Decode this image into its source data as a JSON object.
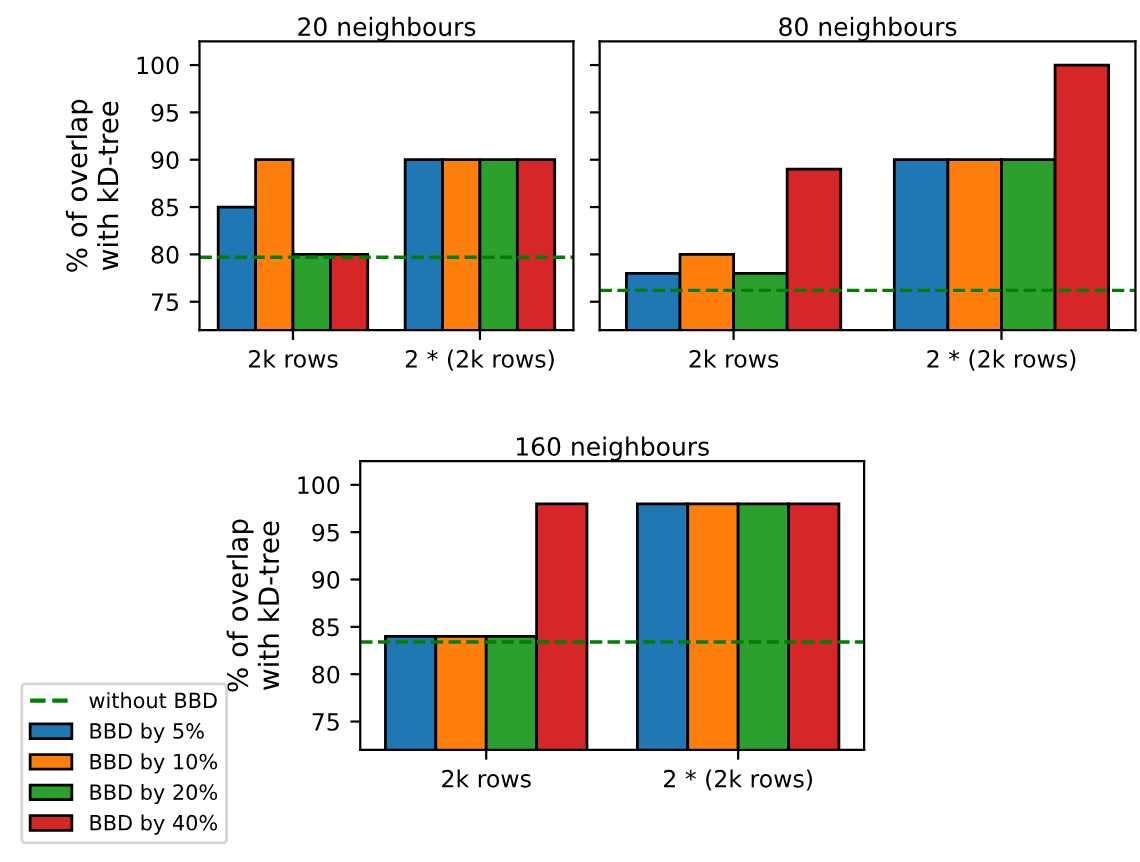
{
  "chart_data": [
    {
      "type": "bar",
      "title": "20 neighbours",
      "ylabel": "% of overlap\nwith kD-tree",
      "categories": [
        "2k rows",
        "2 * (2k rows)"
      ],
      "series": [
        {
          "color": "#1f77b4",
          "values": [
            85,
            90
          ]
        },
        {
          "color": "#ff7f0e",
          "values": [
            90,
            90
          ]
        },
        {
          "color": "#2ca02c",
          "values": [
            80,
            90
          ]
        },
        {
          "color": "#d62728",
          "values": [
            80,
            90
          ]
        }
      ],
      "ylim": [
        72,
        102.5
      ],
      "yticks": [
        75,
        80,
        85,
        90,
        95,
        100
      ],
      "ref_lines": [
        {
          "axis": "y",
          "value": 79.7,
          "color": "#008000",
          "line_style": "dashed"
        }
      ],
      "grid": false,
      "legend": false
    },
    {
      "type": "bar",
      "title": "80 neighbours",
      "categories": [
        "2k rows",
        "2 * (2k rows)"
      ],
      "series": [
        {
          "color": "#1f77b4",
          "values": [
            78,
            90
          ]
        },
        {
          "color": "#ff7f0e",
          "values": [
            80,
            90
          ]
        },
        {
          "color": "#2ca02c",
          "values": [
            78,
            90
          ]
        },
        {
          "color": "#d62728",
          "values": [
            89,
            100
          ]
        }
      ],
      "ylim": [
        72,
        102.5
      ],
      "yticks": [
        75,
        80,
        85,
        90,
        95,
        100
      ],
      "tick_labels": "x",
      "ref_lines": [
        {
          "axis": "y",
          "value": 76.2,
          "color": "#008000",
          "line_style": "dashed"
        }
      ],
      "grid": false,
      "legend": false
    },
    {
      "type": "bar",
      "title": "160 neighbours",
      "ylabel": "% of overlap\nwith kD-tree",
      "categories": [
        "2k rows",
        "2 * (2k rows)"
      ],
      "series": [
        {
          "name": "BBD by 5%",
          "color": "#1f77b4",
          "values": [
            84,
            98
          ]
        },
        {
          "name": "BBD by 10%",
          "color": "#ff7f0e",
          "values": [
            84,
            98
          ]
        },
        {
          "name": "BBD by 20%",
          "color": "#2ca02c",
          "values": [
            84,
            98
          ]
        },
        {
          "name": "BBD by 40%",
          "color": "#d62728",
          "values": [
            98,
            98
          ]
        }
      ],
      "ylim": [
        72,
        102.5
      ],
      "yticks": [
        75,
        80,
        85,
        90,
        95,
        100
      ],
      "ref_lines": [
        {
          "axis": "y",
          "value": 83.4,
          "label": "without BBD",
          "color": "#008000",
          "line_style": "dashed"
        }
      ],
      "grid": false,
      "legend": "left"
    }
  ]
}
